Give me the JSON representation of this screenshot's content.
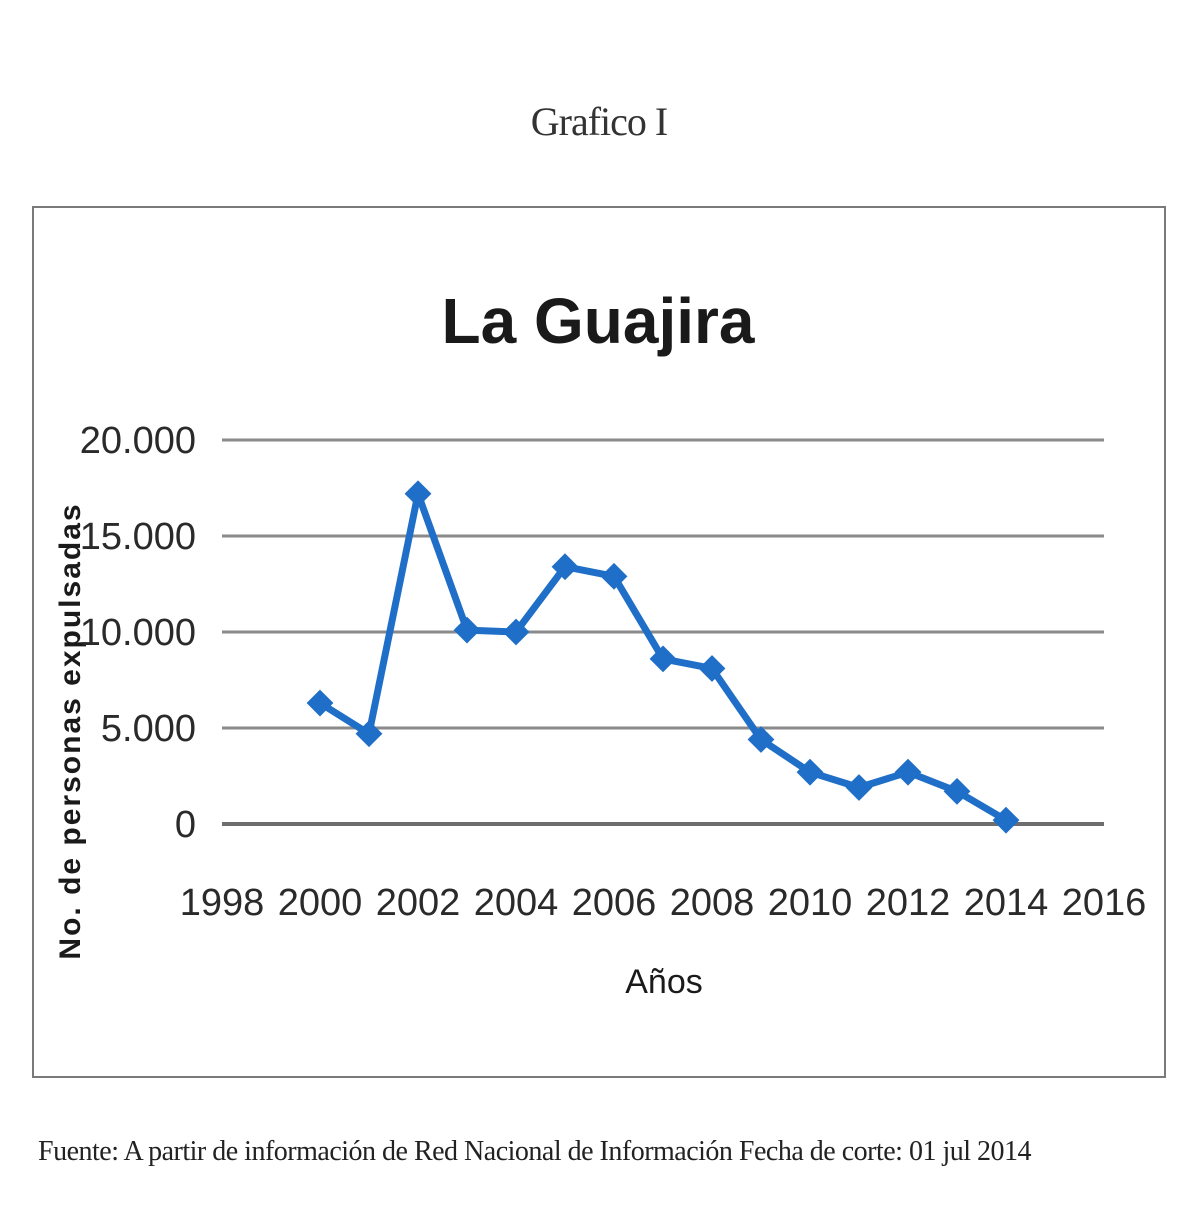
{
  "caption": "Grafico I",
  "source_note": "Fuente: A partir de información de Red Nacional de Información Fecha de corte: 01 jul 2014",
  "chart_data": {
    "type": "line",
    "title": "La Guajira",
    "xlabel": "Años",
    "ylabel": "No. de personas expulsadas",
    "xlim": [
      1998,
      2016
    ],
    "ylim": [
      0,
      20000
    ],
    "x_ticks": [
      "1998",
      "2000",
      "2002",
      "2004",
      "2006",
      "2008",
      "2010",
      "2012",
      "2014",
      "2016"
    ],
    "y_ticks": [
      "0",
      "5.000",
      "10.000",
      "15.000",
      "20.000"
    ],
    "grid": true,
    "series": [
      {
        "color": "#1f6fc8",
        "x": [
          2000,
          2001,
          2002,
          2003,
          2004,
          2005,
          2006,
          2007,
          2008,
          2009,
          2010,
          2011,
          2012,
          2013,
          2014
        ],
        "y": [
          6300,
          4700,
          17200,
          10100,
          10000,
          13400,
          12900,
          8600,
          8100,
          4400,
          2700,
          1900,
          2700,
          1700,
          200
        ]
      }
    ]
  }
}
